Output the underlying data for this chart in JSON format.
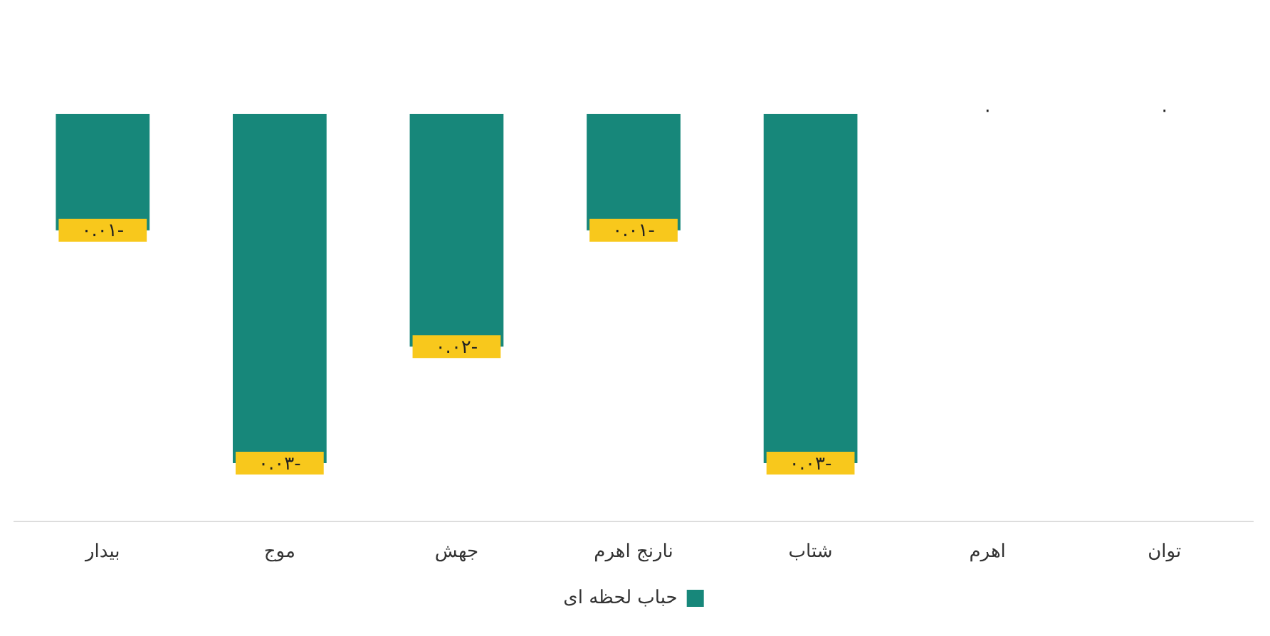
{
  "chart_data": {
    "type": "bar",
    "categories": [
      "بیدار",
      "موج",
      "جهش",
      "نارنج اهرم",
      "شتاب",
      "اهرم",
      "توان"
    ],
    "series": [
      {
        "name": "حباب لحظه ای",
        "color": "#17877a",
        "values": [
          -0.01,
          -0.03,
          -0.02,
          -0.01,
          -0.03,
          0,
          0
        ],
        "value_labels": [
          "-۰.۰۱",
          "-۰.۰۳",
          "-۰.۰۲",
          "-۰.۰۱",
          "-۰.۰۳",
          "۰",
          "۰"
        ]
      }
    ],
    "tick_labels": "x",
    "grid": false,
    "legend": "bottom"
  }
}
